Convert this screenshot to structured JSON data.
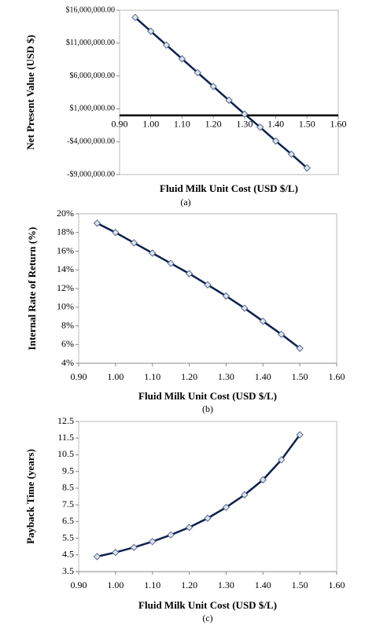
{
  "chart_data": [
    {
      "type": "line",
      "xlabel": "Fluid Milk Unit Cost (USD $/L)",
      "ylabel": "Net Present Value (USD $)",
      "caption": "(a)",
      "x": [
        0.95,
        1.0,
        1.05,
        1.1,
        1.15,
        1.2,
        1.25,
        1.3,
        1.35,
        1.4,
        1.45,
        1.5
      ],
      "values": [
        14900000,
        12800000,
        10700000,
        8600000,
        6500000,
        4400000,
        2300000,
        200000,
        -1800000,
        -3900000,
        -5900000,
        -8000000
      ],
      "color": "#0d2150",
      "xlim": [
        0.9,
        1.6
      ],
      "xticks": [
        {
          "value": 0.9,
          "label": "0.90"
        },
        {
          "value": 1.0,
          "label": "1.00"
        },
        {
          "value": 1.1,
          "label": "1.10"
        },
        {
          "value": 1.2,
          "label": "1.20"
        },
        {
          "value": 1.3,
          "label": "1.30"
        },
        {
          "value": 1.4,
          "label": "1.40"
        },
        {
          "value": 1.5,
          "label": "1.50"
        },
        {
          "value": 1.6,
          "label": "1.60"
        }
      ],
      "ylim": [
        -9000000,
        16000000
      ],
      "yticks": [
        {
          "value": -9000000,
          "label": "-$9,000,000.00"
        },
        {
          "value": -4000000,
          "label": "-$4,000,000.00"
        },
        {
          "value": 1000000,
          "label": "$1,000,000.00"
        },
        {
          "value": 6000000,
          "label": "$6,000,000.00"
        },
        {
          "value": 11000000,
          "label": "$11,000,000.00"
        },
        {
          "value": 16000000,
          "label": "$16,000,000.00"
        }
      ]
    },
    {
      "type": "line",
      "xlabel": "Fluid Milk Unit Cost (USD $/L)",
      "ylabel": "Internal Rate of Return (%)",
      "caption": "(b)",
      "x": [
        0.95,
        1.0,
        1.05,
        1.1,
        1.15,
        1.2,
        1.25,
        1.3,
        1.35,
        1.4,
        1.45,
        1.5
      ],
      "values": [
        19.0,
        18.0,
        16.9,
        15.8,
        14.7,
        13.6,
        12.4,
        11.2,
        9.9,
        8.5,
        7.1,
        5.6
      ],
      "color": "#0d2150",
      "xlim": [
        0.9,
        1.6
      ],
      "xticks": [
        {
          "value": 0.9,
          "label": "0.90"
        },
        {
          "value": 1.0,
          "label": "1.00"
        },
        {
          "value": 1.1,
          "label": "1.10"
        },
        {
          "value": 1.2,
          "label": "1.20"
        },
        {
          "value": 1.3,
          "label": "1.30"
        },
        {
          "value": 1.4,
          "label": "1.40"
        },
        {
          "value": 1.5,
          "label": "1.50"
        },
        {
          "value": 1.6,
          "label": "1.60"
        }
      ],
      "ylim": [
        4,
        20
      ],
      "yticks": [
        {
          "value": 4,
          "label": "4%"
        },
        {
          "value": 6,
          "label": "6%"
        },
        {
          "value": 8,
          "label": "8%"
        },
        {
          "value": 10,
          "label": "10%"
        },
        {
          "value": 12,
          "label": "12%"
        },
        {
          "value": 14,
          "label": "14%"
        },
        {
          "value": 16,
          "label": "16%"
        },
        {
          "value": 18,
          "label": "18%"
        },
        {
          "value": 20,
          "label": "20%"
        }
      ]
    },
    {
      "type": "line",
      "xlabel": "Fluid Milk Unit Cost (USD $/L)",
      "ylabel": "Payback Time (years)",
      "caption": "(c)",
      "x": [
        0.95,
        1.0,
        1.05,
        1.1,
        1.15,
        1.2,
        1.25,
        1.3,
        1.35,
        1.4,
        1.45,
        1.5
      ],
      "values": [
        4.4,
        4.65,
        4.95,
        5.3,
        5.7,
        6.15,
        6.7,
        7.35,
        8.1,
        9.0,
        10.2,
        11.7
      ],
      "color": "#0d2150",
      "xlim": [
        0.9,
        1.6
      ],
      "xticks": [
        {
          "value": 0.9,
          "label": "0.90"
        },
        {
          "value": 1.0,
          "label": "1.00"
        },
        {
          "value": 1.1,
          "label": "1.10"
        },
        {
          "value": 1.2,
          "label": "1.20"
        },
        {
          "value": 1.3,
          "label": "1.30"
        },
        {
          "value": 1.4,
          "label": "1.40"
        },
        {
          "value": 1.5,
          "label": "1.50"
        },
        {
          "value": 1.6,
          "label": "1.60"
        }
      ],
      "ylim": [
        3.5,
        12.5
      ],
      "yticks": [
        3.5,
        4.5,
        5.5,
        6.5,
        7.5,
        8.5,
        9.5,
        10.5,
        11.5,
        12.5
      ]
    }
  ]
}
